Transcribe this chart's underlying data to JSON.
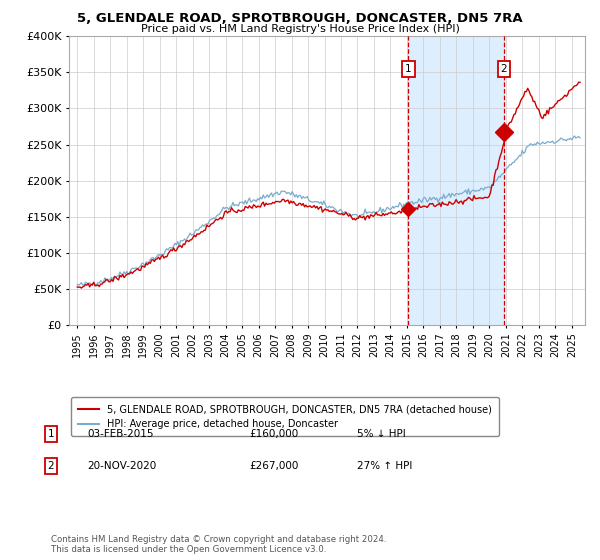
{
  "title": "5, GLENDALE ROAD, SPROTBROUGH, DONCASTER, DN5 7RA",
  "subtitle": "Price paid vs. HM Land Registry's House Price Index (HPI)",
  "legend_line1": "5, GLENDALE ROAD, SPROTBROUGH, DONCASTER, DN5 7RA (detached house)",
  "legend_line2": "HPI: Average price, detached house, Doncaster",
  "annotation1_label": "1",
  "annotation1_date": "03-FEB-2015",
  "annotation1_price": "£160,000",
  "annotation1_hpi": "5% ↓ HPI",
  "annotation2_label": "2",
  "annotation2_date": "20-NOV-2020",
  "annotation2_price": "£267,000",
  "annotation2_hpi": "27% ↑ HPI",
  "footer": "Contains HM Land Registry data © Crown copyright and database right 2024.\nThis data is licensed under the Open Government Licence v3.0.",
  "red_color": "#cc0000",
  "blue_color": "#7aaccc",
  "shade_color": "#ddeeff",
  "background_color": "#ffffff",
  "grid_color": "#cccccc",
  "ylim": [
    0,
    400000
  ],
  "sale1_year": 2015.09,
  "sale2_year": 2020.89,
  "sale1_value": 160000,
  "sale2_value": 267000
}
